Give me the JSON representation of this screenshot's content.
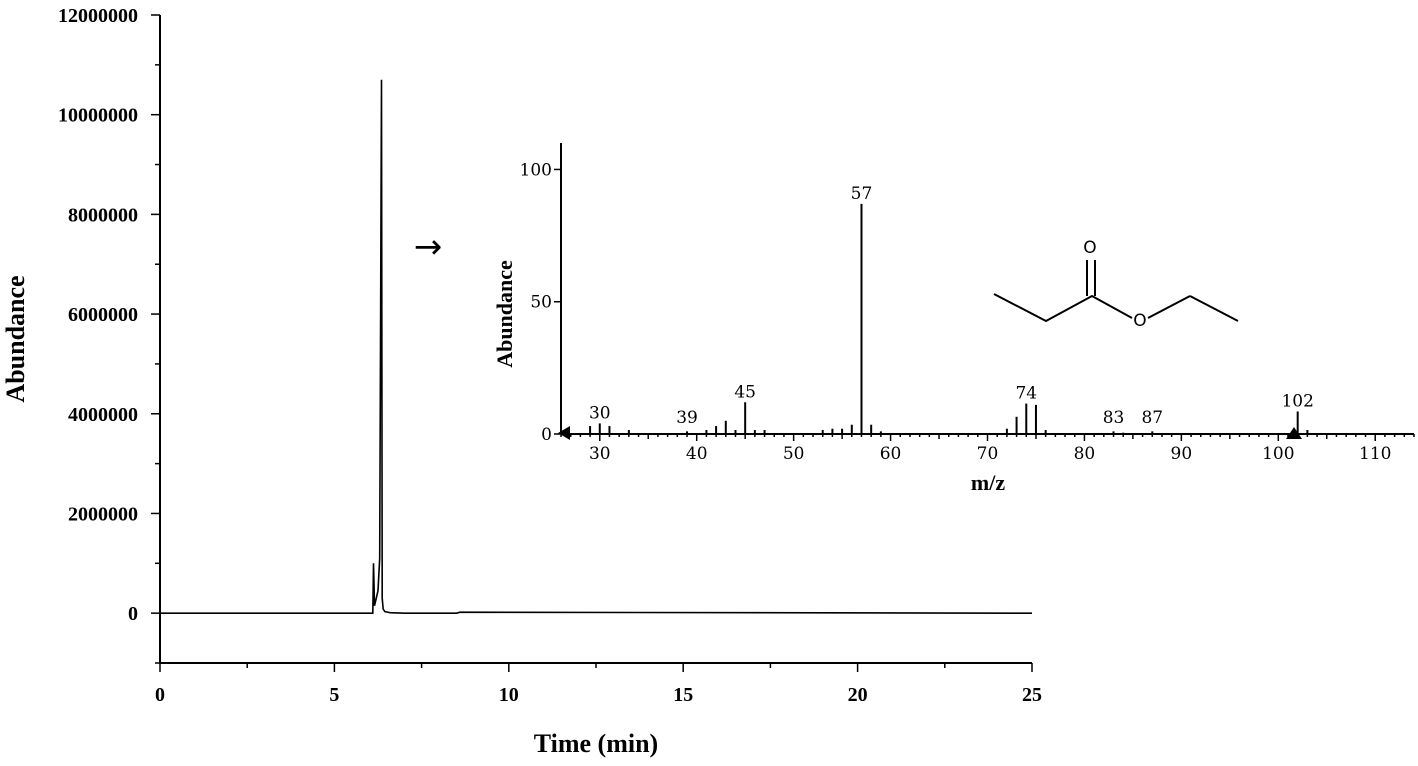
{
  "chart_data": [
    {
      "type": "line",
      "title": "",
      "xlabel": "Time (min)",
      "ylabel": "Abundance",
      "xlim": [
        0,
        25
      ],
      "ylim": [
        -1000000,
        12000000
      ],
      "x_ticks": [
        "0",
        "5",
        "10",
        "15",
        "20",
        "25"
      ],
      "y_ticks": [
        "0",
        "2000000",
        "4000000",
        "6000000",
        "8000000",
        "10000000",
        "12000000"
      ],
      "series": [
        {
          "x": [
            0,
            6.0,
            6.1,
            6.12,
            6.15,
            6.2,
            6.25,
            6.3,
            6.33,
            6.35,
            6.37,
            6.4,
            6.45,
            6.6,
            7.0,
            8.5,
            8.6,
            25
          ],
          "y": [
            0,
            0,
            0,
            1000000,
            150000,
            300000,
            450000,
            1100000,
            7000000,
            10700000,
            300000,
            80000,
            30000,
            10000,
            0,
            0,
            20000,
            0
          ]
        }
      ]
    },
    {
      "type": "bar",
      "title": "",
      "xlabel": "m/z",
      "ylabel": "Abundance",
      "xlim": [
        26,
        114
      ],
      "ylim": [
        0,
        110
      ],
      "x_ticks": [
        "30",
        "40",
        "50",
        "60",
        "70",
        "80",
        "90",
        "100",
        "110"
      ],
      "y_ticks": [
        "0",
        "50",
        "100"
      ],
      "x": [
        29,
        30,
        31,
        33,
        39,
        41,
        42,
        43,
        44,
        45,
        46,
        47,
        53,
        54,
        55,
        56,
        57,
        58,
        59,
        72,
        73,
        74,
        75,
        76,
        83,
        84,
        87,
        102,
        103
      ],
      "y": [
        3,
        4,
        3,
        1.5,
        1,
        1.5,
        3,
        5,
        1.5,
        12,
        1.5,
        1.5,
        1.5,
        2,
        2,
        3.5,
        87,
        3.5,
        1,
        2,
        6.5,
        11.5,
        11,
        1.5,
        1,
        0.5,
        1,
        8.5,
        1.5
      ],
      "peak_labels": [
        "30",
        "39",
        "45",
        "57",
        "74",
        "83",
        "87",
        "102"
      ]
    }
  ],
  "annotation": {
    "arrow": "→",
    "molecule_atoms": [
      "O",
      "O"
    ]
  }
}
